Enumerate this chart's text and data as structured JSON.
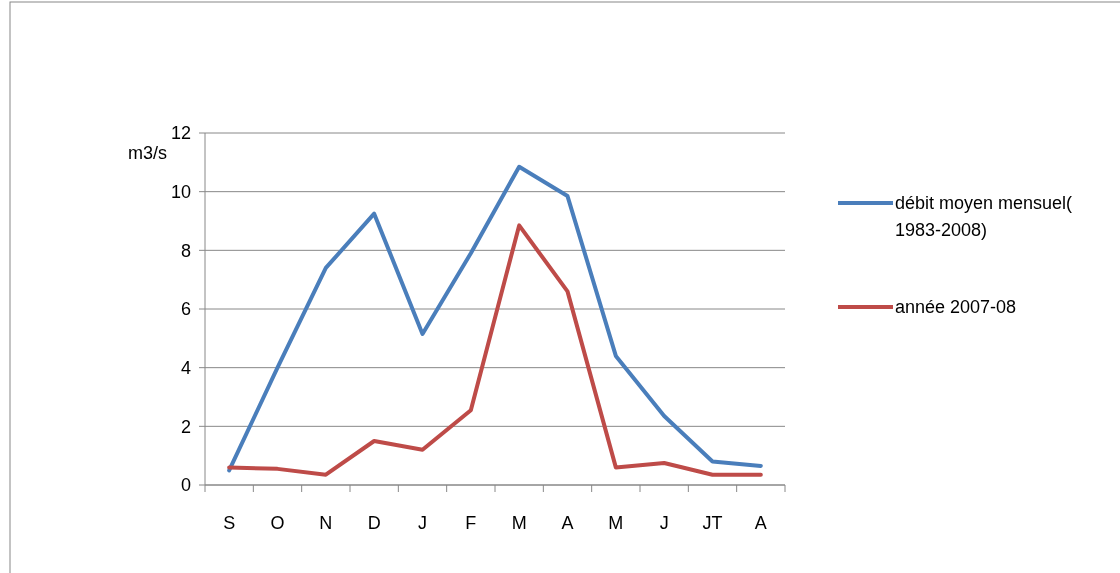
{
  "chart_data": {
    "type": "line",
    "ylabel": "m3/s",
    "categories": [
      "S",
      "O",
      "N",
      "D",
      "J",
      "F",
      "M",
      "A",
      "M",
      "J",
      "JT",
      "A"
    ],
    "series": [
      {
        "name": "débit moyen mensuel( 1983-2008)",
        "color": "#4a7ebb",
        "values": [
          0.5,
          4.0,
          7.4,
          9.25,
          5.15,
          7.9,
          10.85,
          9.85,
          4.4,
          2.35,
          0.8,
          0.65
        ]
      },
      {
        "name": "année 2007-08",
        "color": "#be4b48",
        "values": [
          0.6,
          0.55,
          0.35,
          1.5,
          1.2,
          2.55,
          8.85,
          6.6,
          0.6,
          0.75,
          0.35,
          0.35
        ]
      }
    ],
    "ylim": [
      0,
      12
    ],
    "yticks": [
      0,
      2,
      4,
      6,
      8,
      10,
      12
    ],
    "grid": "y",
    "legend": "right",
    "marker": "none",
    "line_style": "solid"
  }
}
